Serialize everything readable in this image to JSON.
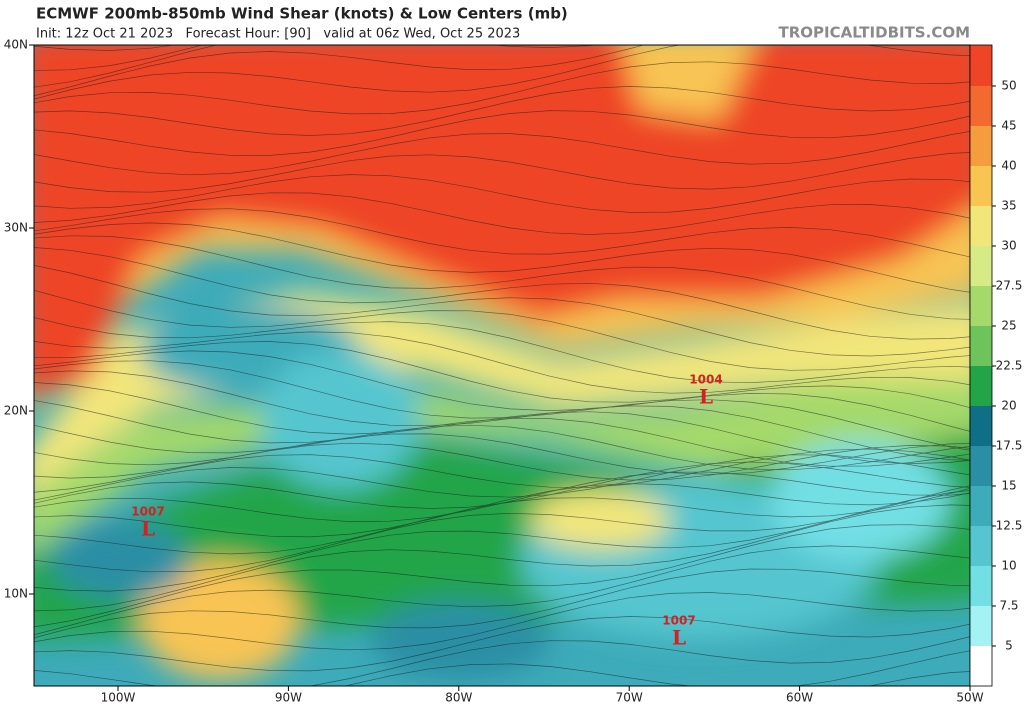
{
  "header": {
    "title": "ECMWF 200mb-850mb Wind Shear (knots) & Low Centers (mb)",
    "subtitle": "Init: 12z Oct 21 2023   Forecast Hour: [90]   valid at 06z Wed, Oct 25 2023",
    "site": "TROPICALTIDBITS.COM"
  },
  "map": {
    "latitude_labels": [
      "40N",
      "30N",
      "20N",
      "10N"
    ],
    "longitude_labels": [
      "100W",
      "90W",
      "80W",
      "70W",
      "60W",
      "50W"
    ],
    "lows": [
      {
        "pressure": 1004,
        "symbol": "L"
      },
      {
        "pressure": 1007,
        "symbol": "L"
      },
      {
        "pressure": 1007,
        "symbol": "L"
      }
    ]
  },
  "colorbar": {
    "ticks": [
      50,
      45,
      40,
      35,
      30,
      27.5,
      25,
      22.5,
      20,
      17.5,
      15,
      12.5,
      10,
      7.5,
      5
    ],
    "colors": [
      "#ee4526",
      "#f26a30",
      "#f59c3e",
      "#f8c452",
      "#f2e67a",
      "#d6ea86",
      "#a5d96a",
      "#6cc45a",
      "#22a548",
      "#0f6f86",
      "#2a8fa4",
      "#3dabb9",
      "#55c6cf",
      "#72dfe5",
      "#a4f2f4",
      "#ffffff"
    ]
  }
}
